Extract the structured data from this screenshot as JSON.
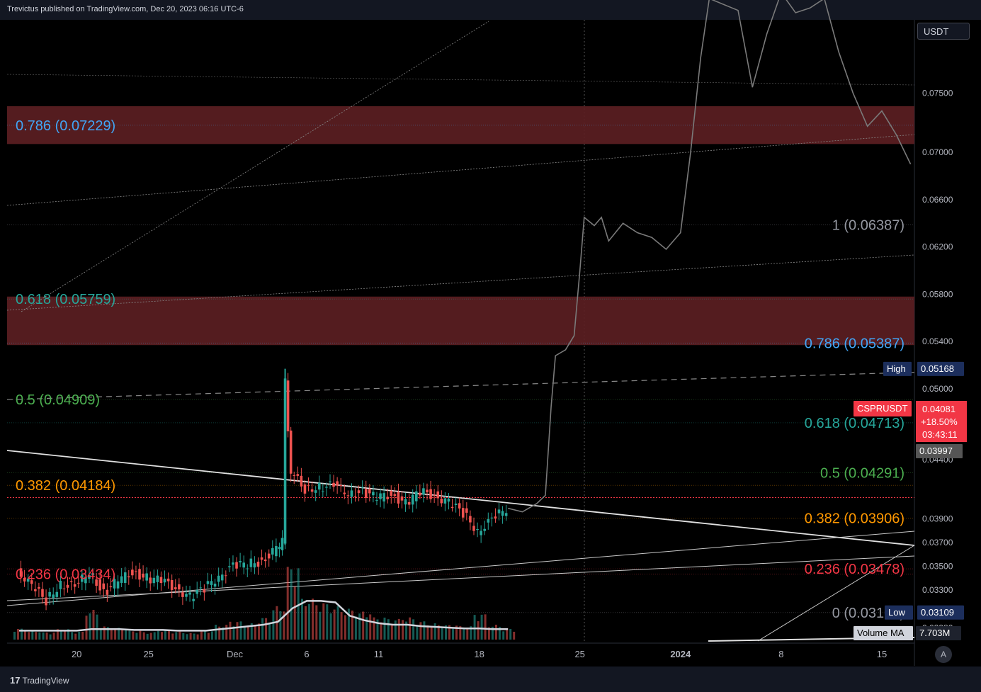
{
  "header": {
    "published_by": "Trevictus published on TradingView.com, Dec 20, 2023 06:16 UTC-6"
  },
  "footer": {
    "brand": "TradingView",
    "auto_button": "A"
  },
  "currency": "USDT",
  "colors": {
    "candle_up": "#26a69a",
    "candle_down": "#ef5350",
    "zone": "#5d1f22",
    "price_tag": "#f23645",
    "projection": "#7a7a7a"
  },
  "chart_data": {
    "type": "candlestick",
    "symbol": "CSPRUSDT",
    "y_axis": {
      "ticks": [
        "0.07500",
        "0.07000",
        "0.06600",
        "0.06200",
        "0.05800",
        "0.05400",
        "0.05000",
        "0.04700",
        "0.04400",
        "0.03900",
        "0.03700",
        "0.03500",
        "0.03300",
        "0.02980"
      ],
      "range": [
        0.0285,
        0.0812
      ]
    },
    "x_axis": {
      "ticks": [
        "20",
        "25",
        "Dec",
        "6",
        "11",
        "18",
        "25",
        "2024",
        "8",
        "15"
      ],
      "tick_day_index": [
        4,
        9,
        15,
        20,
        25,
        32,
        39,
        46,
        53,
        60
      ]
    },
    "price_labels": {
      "last": {
        "value": "0.04081",
        "change": "+18.50%",
        "countdown": "03:43:11"
      },
      "prev_close": "0.03997",
      "high": {
        "label": "High",
        "value": "0.05168"
      },
      "low": {
        "label": "Low",
        "value": "0.03109"
      },
      "volume_ma": {
        "label": "Volume MA",
        "value": "7.703M"
      }
    },
    "fib_left": [
      {
        "text": "0.786 (0.07229)",
        "price": 0.07229,
        "color": "#42a5f5"
      },
      {
        "text": "0.618 (0.05759)",
        "price": 0.05759,
        "color": "#26a69a"
      },
      {
        "text": "0.5 (0.04909)",
        "price": 0.04909,
        "color": "#4caf50"
      },
      {
        "text": "0.382 (0.04184)",
        "price": 0.04184,
        "color": "#ff9800"
      },
      {
        "text": "0.236 (0.03434)",
        "price": 0.03434,
        "color": "#f23645"
      }
    ],
    "fib_right": [
      {
        "text": "1 (0.06387)",
        "price": 0.06387,
        "color": "#9598a1"
      },
      {
        "text": "0.786 (0.05387)",
        "price": 0.05387,
        "color": "#42a5f5"
      },
      {
        "text": "0.618 (0.04713)",
        "price": 0.04713,
        "color": "#26a69a"
      },
      {
        "text": "0.5 (0.04291)",
        "price": 0.04291,
        "color": "#4caf50"
      },
      {
        "text": "0.382 (0.03906)",
        "price": 0.03906,
        "color": "#ff9800"
      },
      {
        "text": "0.236 (0.03478)",
        "price": 0.03478,
        "color": "#f23645"
      },
      {
        "text": "0 (0.03109)",
        "price": 0.03109,
        "color": "#9598a1"
      }
    ],
    "zones": [
      {
        "from": 0.0707,
        "to": 0.0739
      },
      {
        "from": 0.0537,
        "to": 0.0578
      }
    ],
    "price_path": [
      [
        0,
        0.0347
      ],
      [
        1,
        0.0333
      ],
      [
        2,
        0.0321
      ],
      [
        3,
        0.0335
      ],
      [
        4,
        0.0332
      ],
      [
        5,
        0.0346
      ],
      [
        6,
        0.0327
      ],
      [
        7,
        0.0338
      ],
      [
        8,
        0.0345
      ],
      [
        9,
        0.034
      ],
      [
        10,
        0.0338
      ],
      [
        11,
        0.0332
      ],
      [
        12,
        0.0324
      ],
      [
        13,
        0.0331
      ],
      [
        14,
        0.0342
      ],
      [
        15,
        0.035
      ],
      [
        16,
        0.0352
      ],
      [
        17,
        0.0354
      ],
      [
        18,
        0.0365
      ],
      [
        18.4,
        0.037
      ],
      [
        18.6,
        0.0505
      ],
      [
        19,
        0.043
      ],
      [
        20,
        0.0415
      ],
      [
        21,
        0.0417
      ],
      [
        22,
        0.0418
      ],
      [
        23,
        0.0412
      ],
      [
        24,
        0.0413
      ],
      [
        25,
        0.0408
      ],
      [
        26,
        0.0411
      ],
      [
        27,
        0.0403
      ],
      [
        28,
        0.0413
      ],
      [
        29,
        0.041
      ],
      [
        30,
        0.0404
      ],
      [
        31,
        0.0395
      ],
      [
        32,
        0.038
      ],
      [
        33,
        0.0389
      ],
      [
        34,
        0.0399
      ]
    ],
    "projection_path": [
      [
        34,
        0.0399
      ],
      [
        35,
        0.0396
      ],
      [
        36,
        0.0403
      ],
      [
        36.6,
        0.041
      ],
      [
        37,
        0.0485
      ],
      [
        37.3,
        0.0528
      ],
      [
        38,
        0.0533
      ],
      [
        38.6,
        0.0545
      ],
      [
        39,
        0.06
      ],
      [
        39.3,
        0.0645
      ],
      [
        40,
        0.0638
      ],
      [
        40.5,
        0.0645
      ],
      [
        41,
        0.0625
      ],
      [
        42,
        0.064
      ],
      [
        43,
        0.0632
      ],
      [
        44,
        0.0628
      ],
      [
        45,
        0.0618
      ],
      [
        46,
        0.0632
      ],
      [
        46.7,
        0.07
      ],
      [
        47.4,
        0.078
      ],
      [
        48,
        0.083
      ],
      [
        50,
        0.082
      ],
      [
        51,
        0.0755
      ],
      [
        52,
        0.08
      ],
      [
        53,
        0.0835
      ],
      [
        54,
        0.0818
      ],
      [
        55,
        0.0822
      ],
      [
        56,
        0.083
      ],
      [
        57,
        0.0785
      ],
      [
        58,
        0.075
      ],
      [
        59,
        0.0722
      ],
      [
        60,
        0.0735
      ],
      [
        61,
        0.0715
      ],
      [
        62,
        0.069
      ]
    ],
    "volume": {
      "ma_label": "Volume MA",
      "bars_rel": [
        0.15,
        0.12,
        0.1,
        0.14,
        0.11,
        0.4,
        0.18,
        0.16,
        0.12,
        0.1,
        0.13,
        0.11,
        0.09,
        0.12,
        0.2,
        0.25,
        0.22,
        0.3,
        0.45,
        1.0,
        0.55,
        0.5,
        0.45,
        0.42,
        0.38,
        0.3,
        0.28,
        0.3,
        0.25,
        0.22,
        0.2,
        0.18,
        0.35,
        0.2,
        0.15
      ],
      "ma_rel": [
        0.12,
        0.12,
        0.12,
        0.12,
        0.12,
        0.14,
        0.14,
        0.14,
        0.13,
        0.13,
        0.13,
        0.12,
        0.12,
        0.12,
        0.14,
        0.16,
        0.18,
        0.2,
        0.24,
        0.42,
        0.52,
        0.52,
        0.5,
        0.32,
        0.26,
        0.22,
        0.2,
        0.2,
        0.18,
        0.17,
        0.16,
        0.15,
        0.15,
        0.14,
        0.14
      ]
    }
  }
}
